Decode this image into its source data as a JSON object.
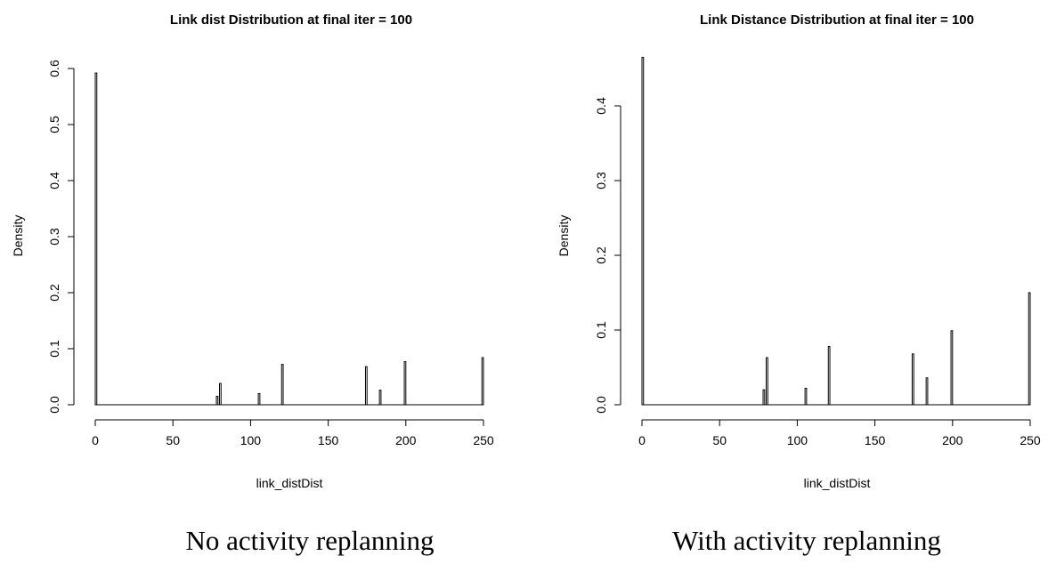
{
  "chart_data": [
    {
      "type": "bar",
      "title": "Link dist Distribution at final iter = 100",
      "xlabel": "link_distDist",
      "ylabel": "Density",
      "xlim": [
        0,
        250
      ],
      "ylim": [
        0,
        0.6
      ],
      "xticks": [
        "0",
        "50",
        "100",
        "150",
        "200",
        "250"
      ],
      "yticks": [
        "0.0",
        "0.1",
        "0.2",
        "0.3",
        "0.4",
        "0.5",
        "0.6"
      ],
      "bin_width": 1,
      "x": [
        0,
        78,
        80,
        105,
        120,
        174,
        183,
        199,
        249
      ],
      "values": [
        0.592,
        0.015,
        0.038,
        0.02,
        0.072,
        0.068,
        0.026,
        0.077,
        0.084
      ],
      "grid": false
    },
    {
      "type": "bar",
      "title": "Link Distance Distribution at final iter = 100",
      "xlabel": "link_distDist",
      "ylabel": "Density",
      "xlim": [
        0,
        250
      ],
      "ylim": [
        0,
        0.45
      ],
      "xticks": [
        "0",
        "50",
        "100",
        "150",
        "200",
        "250"
      ],
      "yticks": [
        "0.0",
        "0.1",
        "0.2",
        "0.3",
        "0.4"
      ],
      "bin_width": 1,
      "x": [
        0,
        78,
        80,
        105,
        120,
        174,
        183,
        199,
        249
      ],
      "values": [
        0.465,
        0.02,
        0.063,
        0.022,
        0.078,
        0.068,
        0.036,
        0.099,
        0.15
      ],
      "grid": false
    }
  ],
  "captions": {
    "left": "No activity replanning",
    "right": "With activity replanning"
  }
}
